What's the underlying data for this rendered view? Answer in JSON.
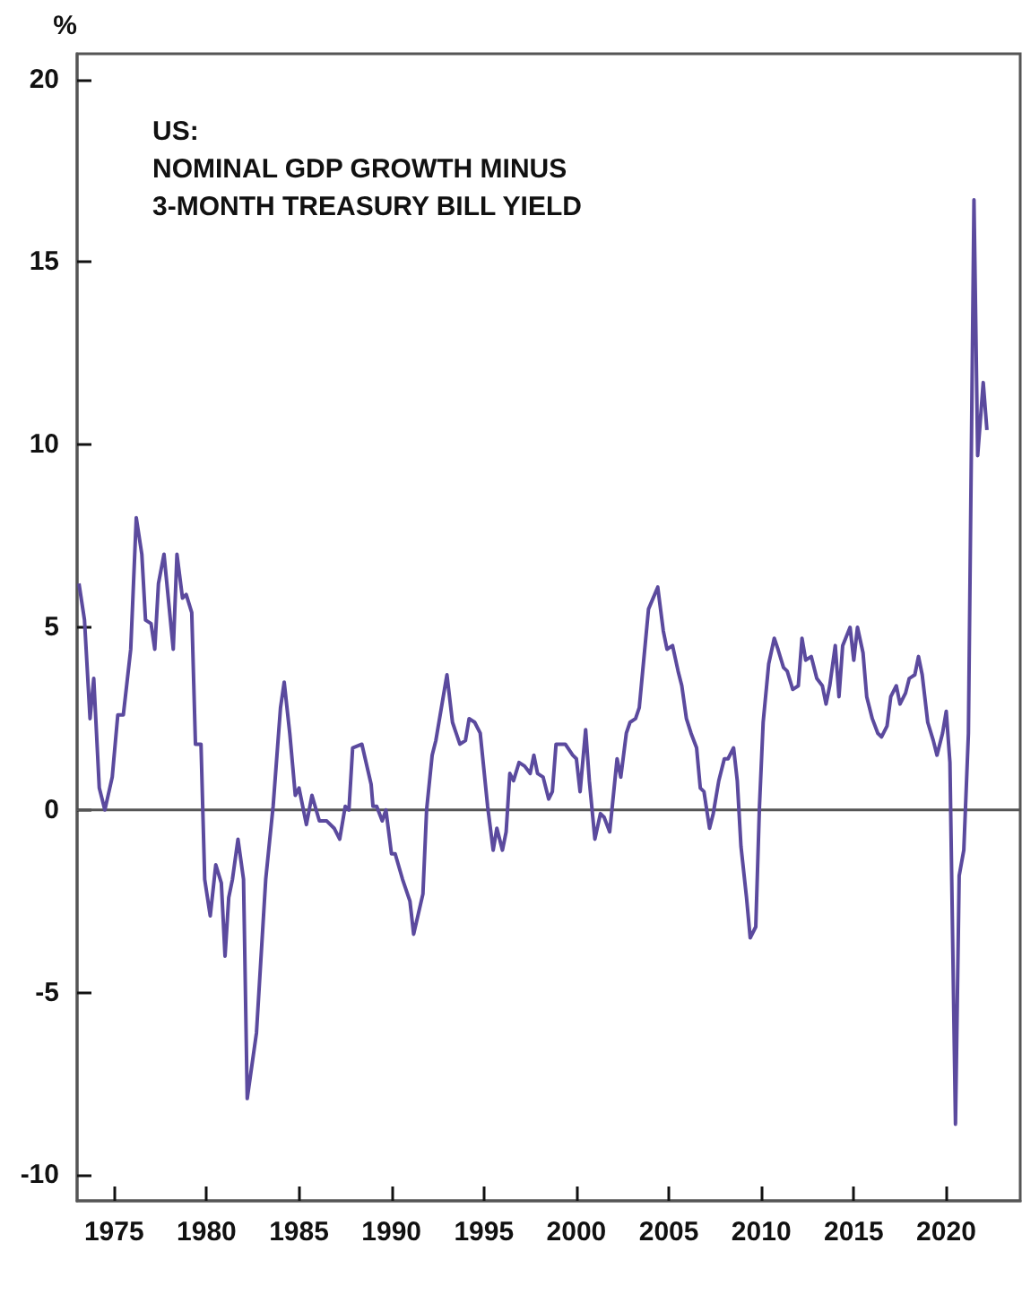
{
  "chart_data": {
    "type": "line",
    "title": "US:\nNOMINAL GDP GROWTH MINUS\n3-MONTH TREASURY BILL YIELD",
    "ylabel": "%",
    "xlim": [
      1973,
      2024
    ],
    "xticks": [
      1975,
      1980,
      1985,
      1990,
      1995,
      2000,
      2005,
      2010,
      2015,
      2020
    ],
    "ylim": [
      -10.7,
      20.7
    ],
    "yticks": [
      -10,
      -5,
      0,
      5,
      10,
      15,
      20
    ],
    "grid": false,
    "marker": "none",
    "line_style": "solid",
    "ref_lines": [
      {
        "axis": "y",
        "value": 0,
        "color": "#555555"
      }
    ],
    "series": [
      {
        "color": "#5b4a9e",
        "x": [
          1973.1,
          1973.4,
          1973.7,
          1973.9,
          1974.2,
          1974.5,
          1974.9,
          1975.2,
          1975.5,
          1975.9,
          1976.2,
          1976.5,
          1976.7,
          1977.0,
          1977.2,
          1977.4,
          1977.7,
          1978.2,
          1978.4,
          1978.7,
          1978.9,
          1979.2,
          1979.4,
          1979.7,
          1979.9,
          1980.2,
          1980.5,
          1980.8,
          1981.0,
          1981.2,
          1981.4,
          1981.7,
          1982.0,
          1982.2,
          1982.7,
          1983.2,
          1983.6,
          1984.0,
          1984.2,
          1984.5,
          1984.8,
          1985.0,
          1985.4,
          1985.7,
          1986.1,
          1986.5,
          1986.9,
          1987.2,
          1987.5,
          1987.7,
          1987.9,
          1988.4,
          1988.9,
          1989.0,
          1989.2,
          1989.5,
          1989.7,
          1990.0,
          1990.2,
          1990.6,
          1991.0,
          1991.2,
          1991.7,
          1991.9,
          1992.2,
          1992.4,
          1993.0,
          1993.3,
          1993.7,
          1994.0,
          1994.2,
          1994.5,
          1994.8,
          1995.2,
          1995.5,
          1995.7,
          1996.0,
          1996.2,
          1996.4,
          1996.6,
          1996.9,
          1997.2,
          1997.5,
          1997.7,
          1997.9,
          1998.2,
          1998.5,
          1998.7,
          1998.9,
          1999.4,
          1999.8,
          2000.0,
          2000.2,
          2000.5,
          2000.7,
          2001.0,
          2001.3,
          2001.5,
          2001.8,
          2002.2,
          2002.4,
          2002.7,
          2002.9,
          2003.2,
          2003.4,
          2003.9,
          2004.4,
          2004.7,
          2004.9,
          2005.2,
          2005.5,
          2005.7,
          2005.95,
          2006.2,
          2006.5,
          2006.7,
          2006.9,
          2007.2,
          2007.4,
          2007.7,
          2008.0,
          2008.2,
          2008.5,
          2008.7,
          2008.9,
          2009.2,
          2009.4,
          2009.7,
          2009.9,
          2010.1,
          2010.4,
          2010.7,
          2010.9,
          2011.2,
          2011.4,
          2011.7,
          2012.0,
          2012.2,
          2012.4,
          2012.7,
          2013.0,
          2013.3,
          2013.5,
          2013.7,
          2014.0,
          2014.2,
          2014.4,
          2014.8,
          2015.0,
          2015.2,
          2015.5,
          2015.7,
          2016.0,
          2016.3,
          2016.5,
          2016.8,
          2017.0,
          2017.3,
          2017.5,
          2017.8,
          2018.0,
          2018.3,
          2018.5,
          2018.7,
          2019.0,
          2019.3,
          2019.5,
          2019.8,
          2020.0,
          2020.2,
          2020.5,
          2020.7,
          2020.95,
          2021.2,
          2021.5,
          2021.7,
          2022.0,
          2022.2
        ],
        "values": [
          6.2,
          5.2,
          2.5,
          3.6,
          0.6,
          0.0,
          0.9,
          2.6,
          2.6,
          4.4,
          8.0,
          7.0,
          5.2,
          5.1,
          4.4,
          6.2,
          7.0,
          4.4,
          7.0,
          5.8,
          5.9,
          5.4,
          1.8,
          1.8,
          -1.9,
          -2.9,
          -1.5,
          -2.0,
          -4.0,
          -2.4,
          -1.9,
          -0.8,
          -1.9,
          -7.9,
          -6.1,
          -1.9,
          0.1,
          2.8,
          3.5,
          2.1,
          0.4,
          0.6,
          -0.4,
          0.4,
          -0.3,
          -0.3,
          -0.5,
          -0.8,
          0.1,
          0.0,
          1.7,
          1.8,
          0.7,
          0.1,
          0.1,
          -0.3,
          0.0,
          -1.2,
          -1.2,
          -1.9,
          -2.5,
          -3.4,
          -2.3,
          0.0,
          1.5,
          1.9,
          3.7,
          2.4,
          1.8,
          1.9,
          2.5,
          2.4,
          2.1,
          0.1,
          -1.1,
          -0.5,
          -1.1,
          -0.6,
          1.0,
          0.8,
          1.3,
          1.2,
          1.0,
          1.5,
          1.0,
          0.9,
          0.3,
          0.5,
          1.8,
          1.8,
          1.5,
          1.4,
          0.5,
          2.2,
          0.8,
          -0.8,
          -0.1,
          -0.2,
          -0.6,
          1.4,
          0.9,
          2.1,
          2.4,
          2.5,
          2.8,
          5.5,
          6.1,
          4.9,
          4.4,
          4.5,
          3.8,
          3.4,
          2.5,
          2.1,
          1.7,
          0.6,
          0.5,
          -0.5,
          -0.1,
          0.8,
          1.4,
          1.4,
          1.7,
          0.8,
          -1.0,
          -2.4,
          -3.5,
          -3.2,
          0.1,
          2.4,
          4.0,
          4.7,
          4.4,
          3.9,
          3.8,
          3.3,
          3.4,
          4.7,
          4.1,
          4.2,
          3.6,
          3.4,
          2.9,
          3.4,
          4.5,
          3.1,
          4.5,
          5.0,
          4.1,
          5.0,
          4.3,
          3.1,
          2.5,
          2.1,
          2.0,
          2.3,
          3.1,
          3.4,
          2.9,
          3.2,
          3.6,
          3.7,
          4.2,
          3.7,
          2.4,
          1.9,
          1.5,
          2.1,
          2.7,
          1.3,
          -8.6,
          -1.8,
          -1.1,
          2.1,
          16.7,
          9.7,
          11.7,
          10.4
        ]
      }
    ]
  }
}
